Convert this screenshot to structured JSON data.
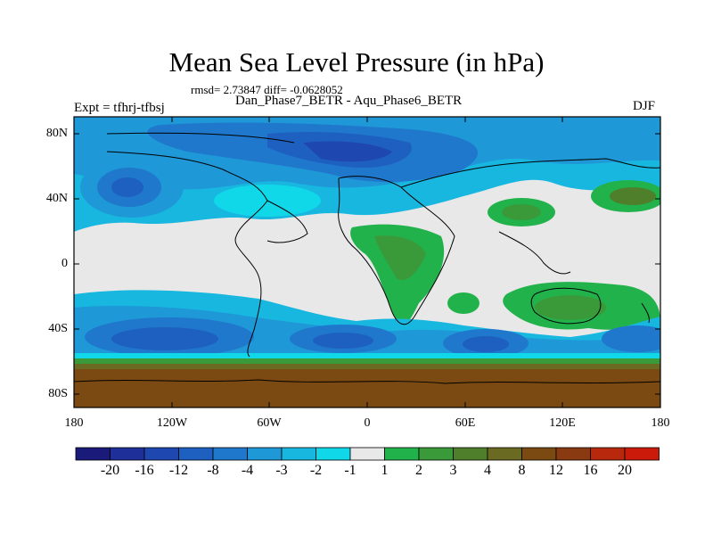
{
  "title": "Mean Sea Level Pressure (in hPa)",
  "stats_text": "rmsd= 2.73847 diff= -0.0628052",
  "experiment_line": "Dan_Phase7_BETR - Aqu_Phase6_BETR",
  "expt_label": "Expt = tfhrj-tfbsj",
  "season": "DJF",
  "lat_labels": [
    "80N",
    "40N",
    "0",
    "40S",
    "80S"
  ],
  "lon_labels": [
    "180",
    "120W",
    "60W",
    "0",
    "60E",
    "120E",
    "180"
  ],
  "colorbar": {
    "labels": [
      "-20",
      "-16",
      "-12",
      "-8",
      "-4",
      "-3",
      "-2",
      "-1",
      "1",
      "2",
      "3",
      "4",
      "8",
      "12",
      "16",
      "20"
    ],
    "colors": [
      "#1a1a7a",
      "#1f2f9a",
      "#1f47b0",
      "#1e60c0",
      "#1f78cc",
      "#1f98d8",
      "#18b7e0",
      "#10d8e8",
      "#e8e8e8",
      "#22b24c",
      "#3a9a3a",
      "#4f7f2a",
      "#6a6a22",
      "#7a4a12",
      "#8a3a10",
      "#b8280c",
      "#cc1a0a"
    ]
  }
}
